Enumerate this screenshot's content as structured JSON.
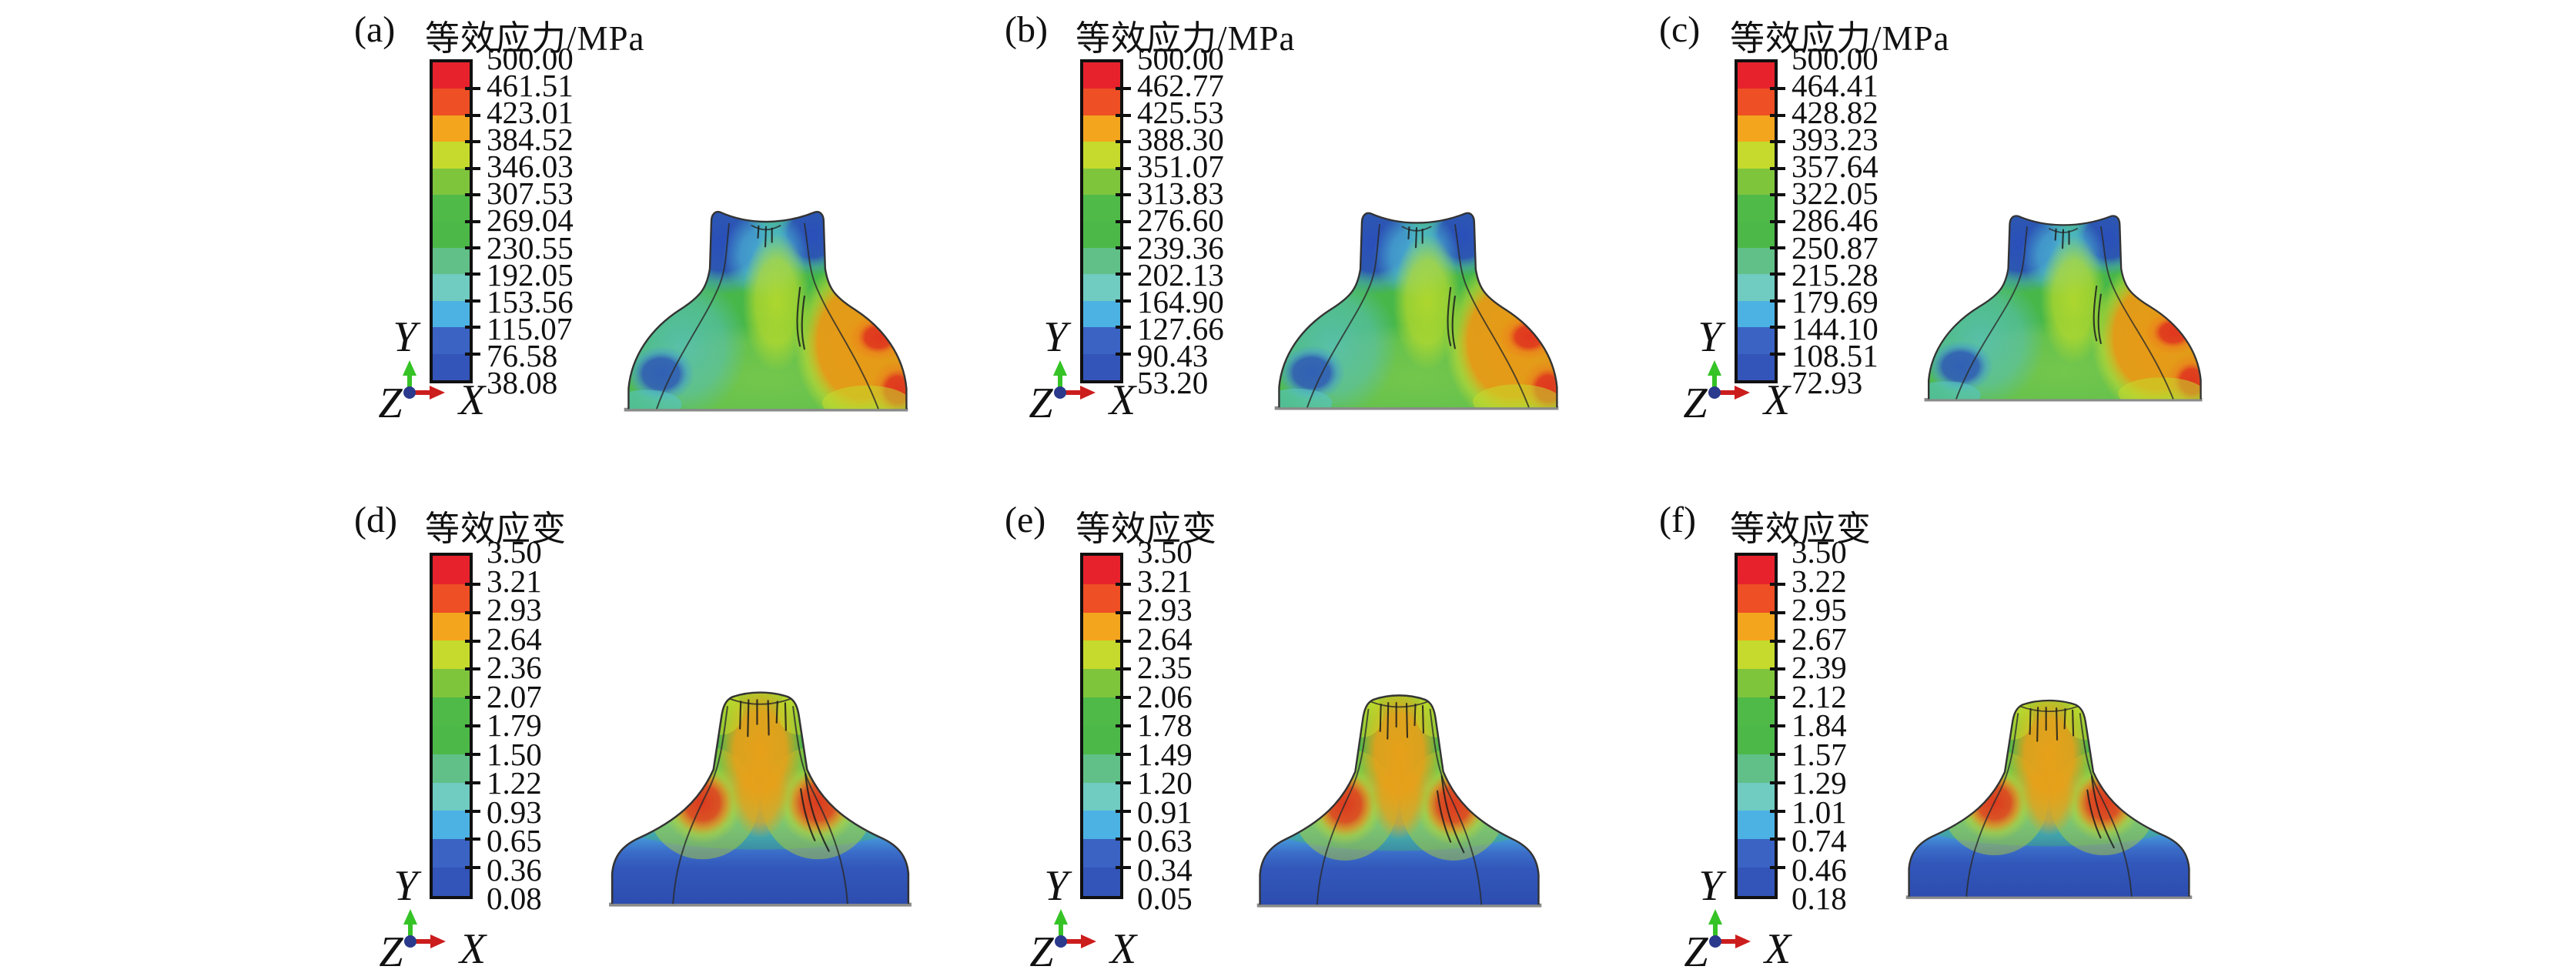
{
  "figure": {
    "axis_labels": {
      "x": "X",
      "y": "Y",
      "z": "Z"
    },
    "axis_colors": {
      "y_arrow": "#35c326",
      "x_arrow": "#cc1d1d",
      "origin_dot": "#2b3a8c"
    },
    "legend_palette": [
      "#e7222d",
      "#ee4f24",
      "#f3a51e",
      "#c5da2c",
      "#7fc53c",
      "#50ba49",
      "#4cb847",
      "#61c088",
      "#70cbc1",
      "#4cb2e4",
      "#3a63c4",
      "#3354b8"
    ],
    "panels": [
      {
        "id": "a",
        "label": "(a)",
        "title": "等效应力/MPa",
        "type": "stress",
        "legend_values": [
          "500.00",
          "461.51",
          "423.01",
          "384.52",
          "346.03",
          "307.53",
          "269.04",
          "230.55",
          "192.05",
          "153.56",
          "115.07",
          "76.58",
          "38.08"
        ]
      },
      {
        "id": "b",
        "label": "(b)",
        "title": "等效应力/MPa",
        "type": "stress",
        "legend_values": [
          "500.00",
          "462.77",
          "425.53",
          "388.30",
          "351.07",
          "313.83",
          "276.60",
          "239.36",
          "202.13",
          "164.90",
          "127.66",
          "90.43",
          "53.20"
        ]
      },
      {
        "id": "c",
        "label": "(c)",
        "title": "等效应力/MPa",
        "type": "stress",
        "legend_values": [
          "500.00",
          "464.41",
          "428.82",
          "393.23",
          "357.64",
          "322.05",
          "286.46",
          "250.87",
          "215.28",
          "179.69",
          "144.10",
          "108.51",
          "72.93"
        ]
      },
      {
        "id": "d",
        "label": "(d)",
        "title": "等效应变",
        "type": "strain",
        "legend_values": [
          "3.50",
          "3.21",
          "2.93",
          "2.64",
          "2.36",
          "2.07",
          "1.79",
          "1.50",
          "1.22",
          "0.93",
          "0.65",
          "0.36",
          "0.08"
        ]
      },
      {
        "id": "e",
        "label": "(e)",
        "title": "等效应变",
        "type": "strain",
        "legend_values": [
          "3.50",
          "3.21",
          "2.93",
          "2.64",
          "2.35",
          "2.06",
          "1.78",
          "1.49",
          "1.20",
          "0.91",
          "0.63",
          "0.34",
          "0.05"
        ]
      },
      {
        "id": "f",
        "label": "(f)",
        "title": "等效应变",
        "type": "strain",
        "legend_values": [
          "3.50",
          "3.22",
          "2.95",
          "2.67",
          "2.39",
          "2.12",
          "1.84",
          "1.57",
          "1.29",
          "1.01",
          "0.74",
          "0.46",
          "0.18"
        ]
      }
    ]
  },
  "chart_data": [
    {
      "panel": "(a)",
      "type": "heatmap",
      "title": "等效应力/MPa",
      "quantity": "equivalent stress",
      "unit": "MPa",
      "colorbar_ticks": [
        500.0,
        461.51,
        423.01,
        384.52,
        346.03,
        307.53,
        269.04,
        230.55,
        192.05,
        153.56,
        115.07,
        76.58,
        38.08
      ],
      "range": [
        38.08,
        500.0
      ],
      "legend_position": "left"
    },
    {
      "panel": "(b)",
      "type": "heatmap",
      "title": "等效应力/MPa",
      "quantity": "equivalent stress",
      "unit": "MPa",
      "colorbar_ticks": [
        500.0,
        462.77,
        425.53,
        388.3,
        351.07,
        313.83,
        276.6,
        239.36,
        202.13,
        164.9,
        127.66,
        90.43,
        53.2
      ],
      "range": [
        53.2,
        500.0
      ],
      "legend_position": "left"
    },
    {
      "panel": "(c)",
      "type": "heatmap",
      "title": "等效应力/MPa",
      "quantity": "equivalent stress",
      "unit": "MPa",
      "colorbar_ticks": [
        500.0,
        464.41,
        428.82,
        393.23,
        357.64,
        322.05,
        286.46,
        250.87,
        215.28,
        179.69,
        144.1,
        108.51,
        72.93
      ],
      "range": [
        72.93,
        500.0
      ],
      "legend_position": "left"
    },
    {
      "panel": "(d)",
      "type": "heatmap",
      "title": "等效应变",
      "quantity": "equivalent strain",
      "unit": "",
      "colorbar_ticks": [
        3.5,
        3.21,
        2.93,
        2.64,
        2.36,
        2.07,
        1.79,
        1.5,
        1.22,
        0.93,
        0.65,
        0.36,
        0.08
      ],
      "range": [
        0.08,
        3.5
      ],
      "legend_position": "left"
    },
    {
      "panel": "(e)",
      "type": "heatmap",
      "title": "等效应变",
      "quantity": "equivalent strain",
      "unit": "",
      "colorbar_ticks": [
        3.5,
        3.21,
        2.93,
        2.64,
        2.35,
        2.06,
        1.78,
        1.49,
        1.2,
        0.91,
        0.63,
        0.34,
        0.05
      ],
      "range": [
        0.05,
        3.5
      ],
      "legend_position": "left"
    },
    {
      "panel": "(f)",
      "type": "heatmap",
      "title": "等效应变",
      "quantity": "equivalent strain",
      "unit": "",
      "colorbar_ticks": [
        3.5,
        3.22,
        2.95,
        2.67,
        2.39,
        2.12,
        1.84,
        1.57,
        1.29,
        1.01,
        0.74,
        0.46,
        0.18
      ],
      "range": [
        0.18,
        3.5
      ],
      "legend_position": "left"
    }
  ]
}
